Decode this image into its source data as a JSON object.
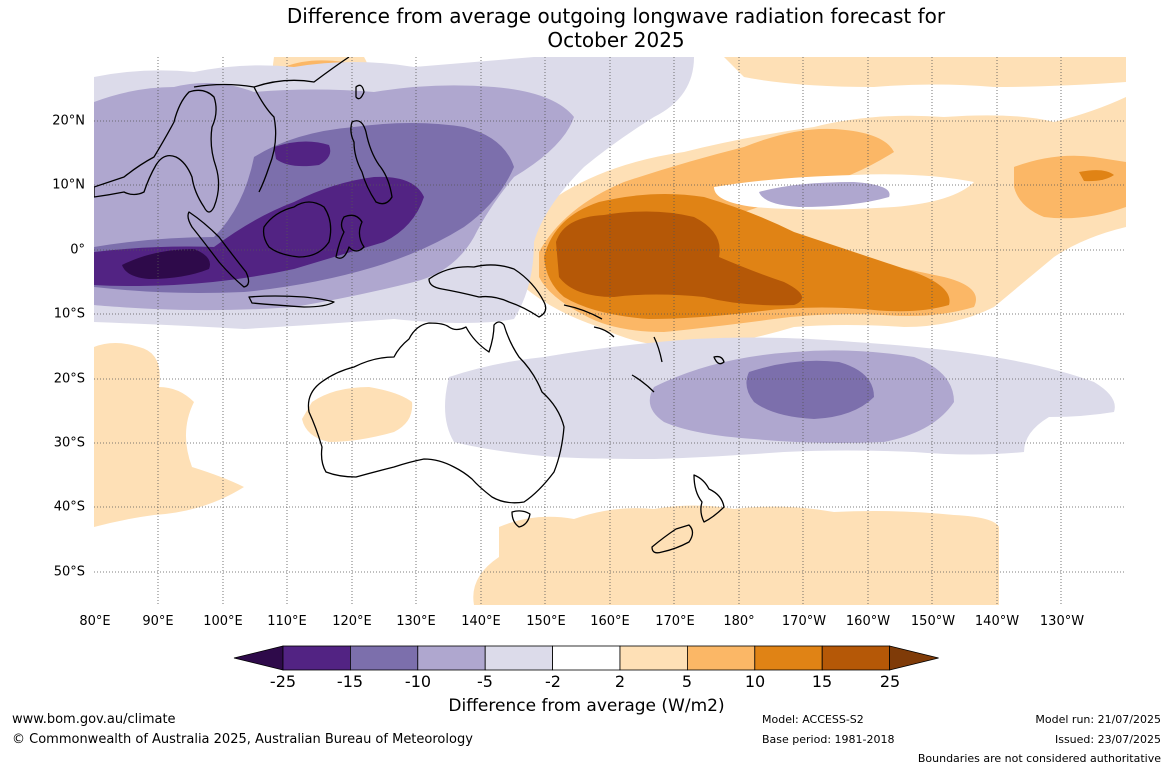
{
  "title_line1": "Difference from average outgoing longwave radiation forecast for",
  "title_line2": "October 2025",
  "lat_labels": [
    "20°N",
    "10°N",
    "0°",
    "10°S",
    "20°S",
    "30°S",
    "40°S",
    "50°S"
  ],
  "lon_labels": [
    "80°E",
    "90°E",
    "100°E",
    "110°E",
    "120°E",
    "130°E",
    "140°E",
    "150°E",
    "160°E",
    "170°E",
    "180°",
    "170°W",
    "160°W",
    "150°W",
    "140°W",
    "130°W"
  ],
  "colorbar": {
    "ticks": [
      "-25",
      "-15",
      "-10",
      "-5",
      "-2",
      "2",
      "5",
      "10",
      "15",
      "25"
    ],
    "colors": [
      "#2e0a4a",
      "#522383",
      "#7c6fac",
      "#afa7cf",
      "#dcdbea",
      "#ffffff",
      "#fee0b6",
      "#fbb766",
      "#e08315",
      "#b55807",
      "#7f3b08"
    ],
    "label": "Difference from average (W/m2)"
  },
  "footer": {
    "url": "www.bom.gov.au/climate",
    "copyright": "© Commonwealth of Australia 2025, Australian Bureau of Meteorology",
    "model": "Model: ACCESS-S2",
    "base_period": "Base period: 1981-2018",
    "model_run": "Model run: 21/07/2025",
    "issued": "Issued: 23/07/2025",
    "boundaries_note": "Boundaries are not considered authoritative"
  }
}
